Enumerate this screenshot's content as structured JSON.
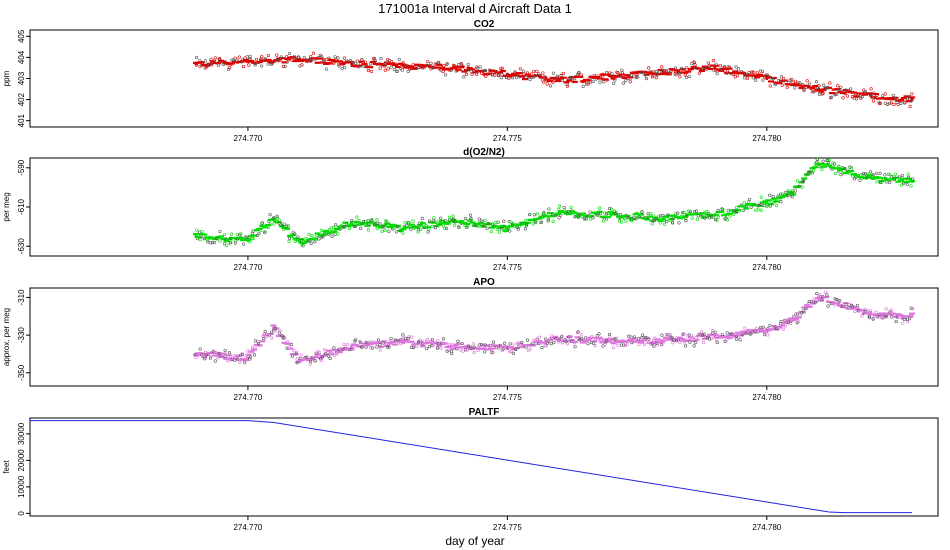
{
  "page": {
    "title": "171001a   Interval d Aircraft Data 1",
    "xlabel": "day of year"
  },
  "chart_data": [
    {
      "type": "scatter",
      "title": "CO2",
      "ylabel": "ppm",
      "color": "#e00000",
      "xlim": [
        274.7658,
        274.7833
      ],
      "ylim": [
        400.7,
        405.3
      ],
      "yticks": [
        401,
        402,
        403,
        404,
        405
      ],
      "xticks": [
        274.77,
        274.775,
        274.78
      ],
      "xtick_labels": [
        "274.770",
        "274.775",
        "274.780"
      ],
      "series": [
        {
          "name": "CO2",
          "x": [
            274.769,
            274.77,
            274.771,
            274.772,
            274.773,
            274.774,
            274.775,
            274.776,
            274.777,
            274.778,
            274.779,
            274.78,
            274.781,
            274.782,
            274.7828
          ],
          "y": [
            403.7,
            403.8,
            403.9,
            403.7,
            403.6,
            403.5,
            403.2,
            402.9,
            403.1,
            403.3,
            403.5,
            403.0,
            402.5,
            402.2,
            402.0
          ]
        }
      ]
    },
    {
      "type": "scatter",
      "title": "d(O2/N2)",
      "ylabel": "per meg",
      "color": "#00dd00",
      "xlim": [
        274.7658,
        274.7833
      ],
      "ylim": [
        -635,
        -585
      ],
      "yticks": [
        -630,
        -610,
        -590
      ],
      "xticks": [
        274.77,
        274.775,
        274.78
      ],
      "xtick_labels": [
        "274.770",
        "274.775",
        "274.780"
      ],
      "series": [
        {
          "name": "d(O2/N2)",
          "x": [
            274.769,
            274.77,
            274.7705,
            274.771,
            274.772,
            274.773,
            274.774,
            274.775,
            274.776,
            274.777,
            274.778,
            274.779,
            274.78,
            274.7805,
            274.781,
            274.782,
            274.7828
          ],
          "y": [
            -625,
            -627,
            -616,
            -628,
            -618,
            -621,
            -617,
            -621,
            -613,
            -614,
            -616,
            -614,
            -608,
            -603,
            -588,
            -595,
            -597
          ]
        }
      ]
    },
    {
      "type": "scatter",
      "title": "APO",
      "ylabel": "approx. per meg",
      "color": "#dd77dd",
      "xlim": [
        274.7658,
        274.7833
      ],
      "ylim": [
        -357,
        -305
      ],
      "yticks": [
        -350,
        -330,
        -310
      ],
      "xticks": [
        274.77,
        274.775,
        274.78
      ],
      "xtick_labels": [
        "274.770",
        "274.775",
        "274.780"
      ],
      "series": [
        {
          "name": "APO",
          "x": [
            274.769,
            274.77,
            274.7705,
            274.771,
            274.772,
            274.773,
            274.774,
            274.775,
            274.776,
            274.777,
            274.778,
            274.779,
            274.78,
            274.7805,
            274.781,
            274.782,
            274.7828
          ],
          "y": [
            -340,
            -342,
            -326,
            -344,
            -336,
            -334,
            -336,
            -337,
            -332,
            -333,
            -333,
            -331,
            -328,
            -322,
            -310,
            -318,
            -320
          ]
        }
      ]
    },
    {
      "type": "line",
      "title": "PALTF",
      "ylabel": "feet",
      "color": "#2222dd",
      "xlim": [
        274.7658,
        274.7833
      ],
      "ylim": [
        -1000,
        36000
      ],
      "yticks": [
        0,
        10000,
        20000,
        30000
      ],
      "ytick_labels": [
        "0",
        "10000",
        "20000",
        "30000"
      ],
      "xticks": [
        274.77,
        274.775,
        274.78
      ],
      "xtick_labels": [
        "274.770",
        "274.775",
        "274.780"
      ],
      "series": [
        {
          "name": "PALTF",
          "x": [
            274.7658,
            274.77,
            274.7705,
            274.7812,
            274.7815,
            274.7828
          ],
          "y": [
            35000,
            35000,
            34300,
            500,
            300,
            300
          ]
        }
      ]
    }
  ]
}
